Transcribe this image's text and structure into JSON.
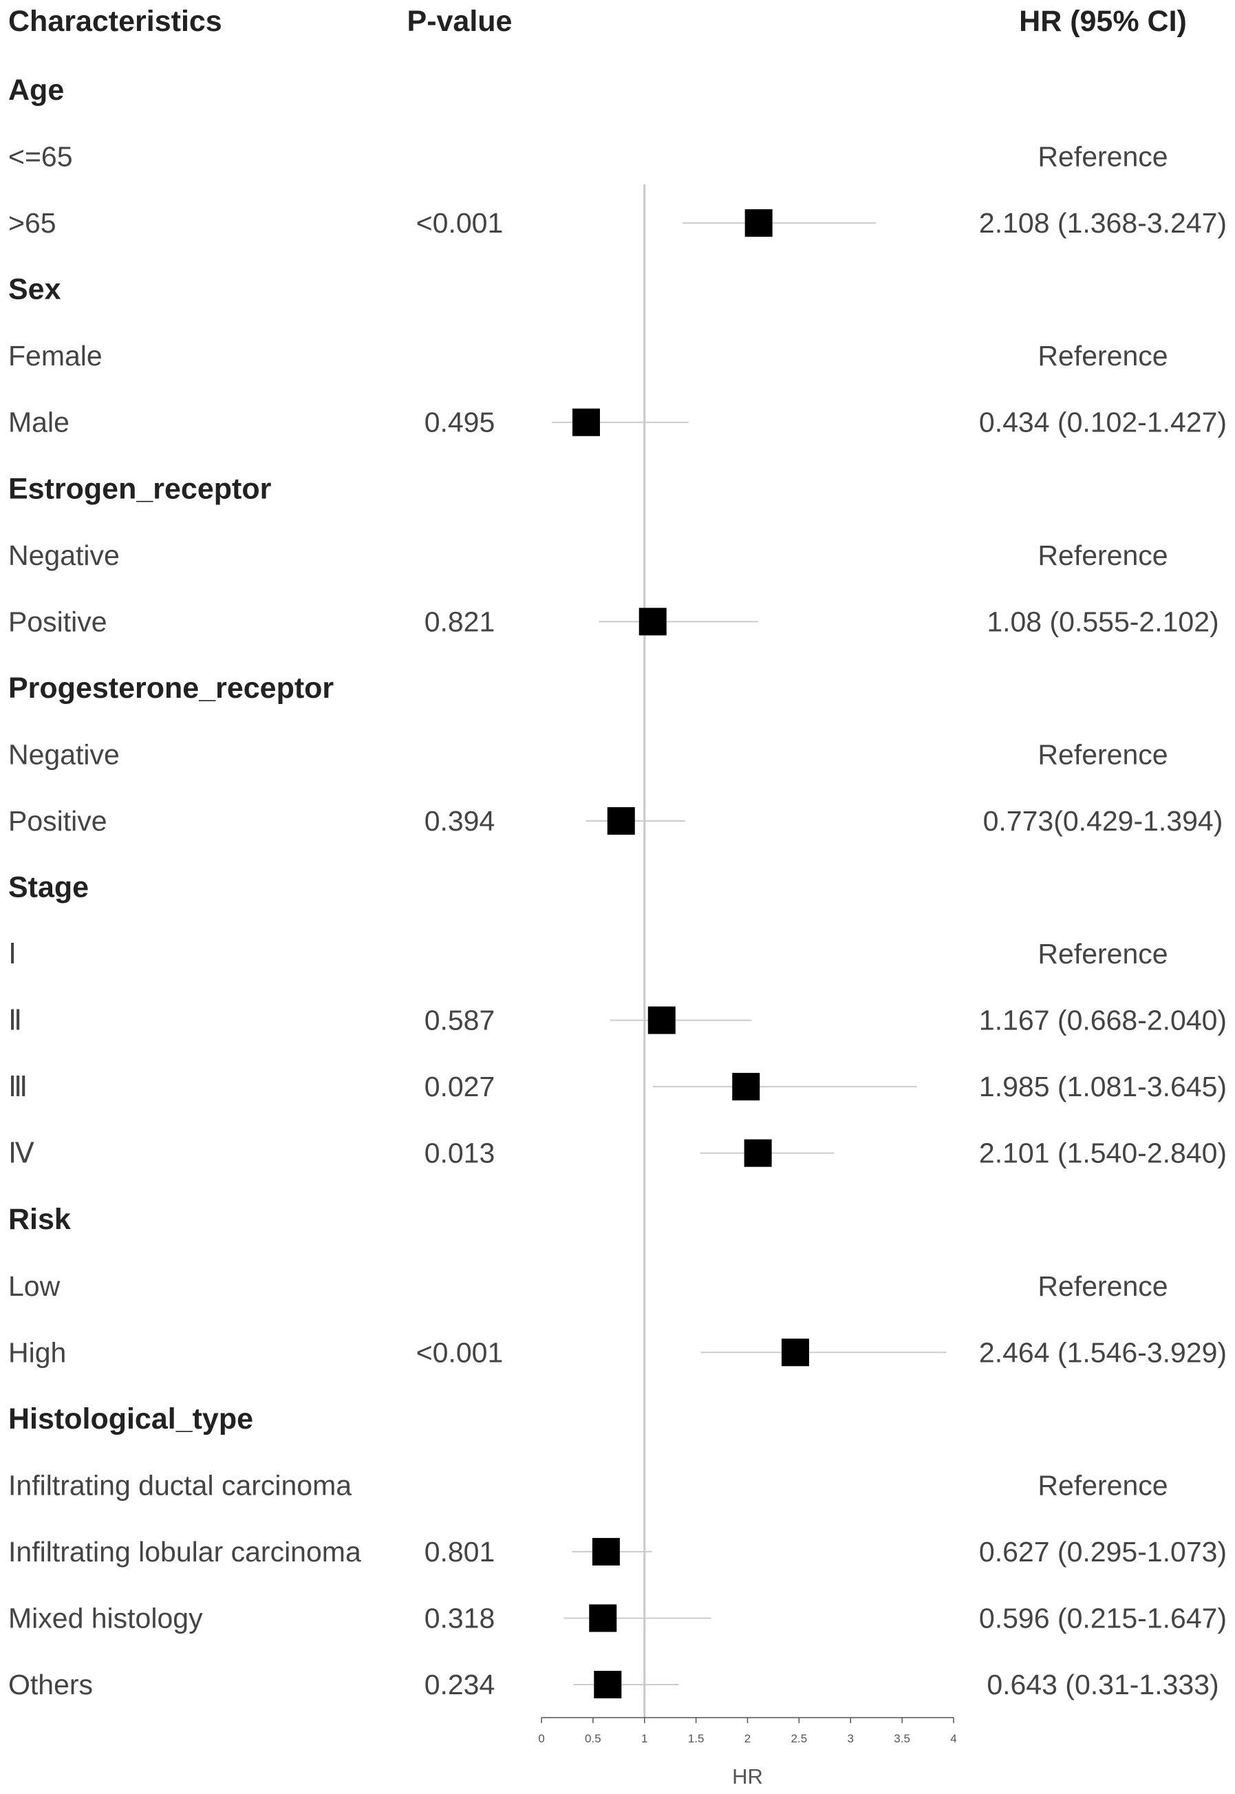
{
  "chart_data": {
    "type": "forest",
    "headers": {
      "characteristics": "Characteristics",
      "pvalue": "P-value",
      "hr": "HR (95% CI)"
    },
    "xlabel": "HR",
    "xlim": [
      0,
      4
    ],
    "xticks": [
      "0",
      "0.5",
      "1",
      "1.5",
      "2",
      "2.5",
      "3",
      "3.5",
      "4"
    ],
    "reference_line": 1,
    "rows": [
      {
        "kind": "category",
        "label": "Age"
      },
      {
        "kind": "level",
        "label": "<=65",
        "p": "",
        "hr_text": "Reference"
      },
      {
        "kind": "level",
        "label": ">65",
        "p": "<0.001",
        "hr_text": "2.108 (1.368-3.247)",
        "hr": 2.108,
        "lo": 1.368,
        "hi": 3.247
      },
      {
        "kind": "category",
        "label": "Sex"
      },
      {
        "kind": "level",
        "label": "Female",
        "p": "",
        "hr_text": "Reference"
      },
      {
        "kind": "level",
        "label": "Male",
        "p": "0.495",
        "hr_text": "0.434 (0.102-1.427)",
        "hr": 0.434,
        "lo": 0.102,
        "hi": 1.427
      },
      {
        "kind": "category",
        "label": "Estrogen_receptor"
      },
      {
        "kind": "level",
        "label": "Negative",
        "p": "",
        "hr_text": "Reference"
      },
      {
        "kind": "level",
        "label": "Positive",
        "p": "0.821",
        "hr_text": "1.08 (0.555-2.102)",
        "hr": 1.08,
        "lo": 0.555,
        "hi": 2.102
      },
      {
        "kind": "category",
        "label": "Progesterone_receptor"
      },
      {
        "kind": "level",
        "label": "Negative",
        "p": "",
        "hr_text": "Reference"
      },
      {
        "kind": "level",
        "label": "Positive",
        "p": "0.394",
        "hr_text": "0.773(0.429-1.394)",
        "hr": 0.773,
        "lo": 0.429,
        "hi": 1.394
      },
      {
        "kind": "category",
        "label": "Stage"
      },
      {
        "kind": "level",
        "label": "Ⅰ",
        "p": "",
        "hr_text": "Reference"
      },
      {
        "kind": "level",
        "label": "Ⅱ",
        "p": "0.587",
        "hr_text": "1.167 (0.668-2.040)",
        "hr": 1.167,
        "lo": 0.668,
        "hi": 2.04
      },
      {
        "kind": "level",
        "label": "Ⅲ",
        "p": "0.027",
        "hr_text": "1.985 (1.081-3.645)",
        "hr": 1.985,
        "lo": 1.081,
        "hi": 3.645
      },
      {
        "kind": "level",
        "label": "Ⅳ",
        "p": "0.013",
        "hr_text": "2.101 (1.540-2.840)",
        "hr": 2.101,
        "lo": 1.54,
        "hi": 2.84
      },
      {
        "kind": "category",
        "label": "Risk"
      },
      {
        "kind": "level",
        "label": "Low",
        "p": "",
        "hr_text": "Reference"
      },
      {
        "kind": "level",
        "label": "High",
        "p": "<0.001",
        "hr_text": "2.464 (1.546-3.929)",
        "hr": 2.464,
        "lo": 1.546,
        "hi": 3.929
      },
      {
        "kind": "category",
        "label": "Histological_type"
      },
      {
        "kind": "level",
        "label": "Infiltrating ductal carcinoma",
        "p": "",
        "hr_text": "Reference"
      },
      {
        "kind": "level",
        "label": "Infiltrating lobular carcinoma",
        "p": "0.801",
        "hr_text": "0.627 (0.295-1.073)",
        "hr": 0.627,
        "lo": 0.295,
        "hi": 1.073
      },
      {
        "kind": "level",
        "label": "Mixed histology",
        "p": "0.318",
        "hr_text": "0.596 (0.215-1.647)",
        "hr": 0.596,
        "lo": 0.215,
        "hi": 1.647
      },
      {
        "kind": "level",
        "label": "Others",
        "p": "0.234",
        "hr_text": "0.643 (0.31-1.333)",
        "hr": 0.643,
        "lo": 0.31,
        "hi": 1.333
      }
    ]
  }
}
